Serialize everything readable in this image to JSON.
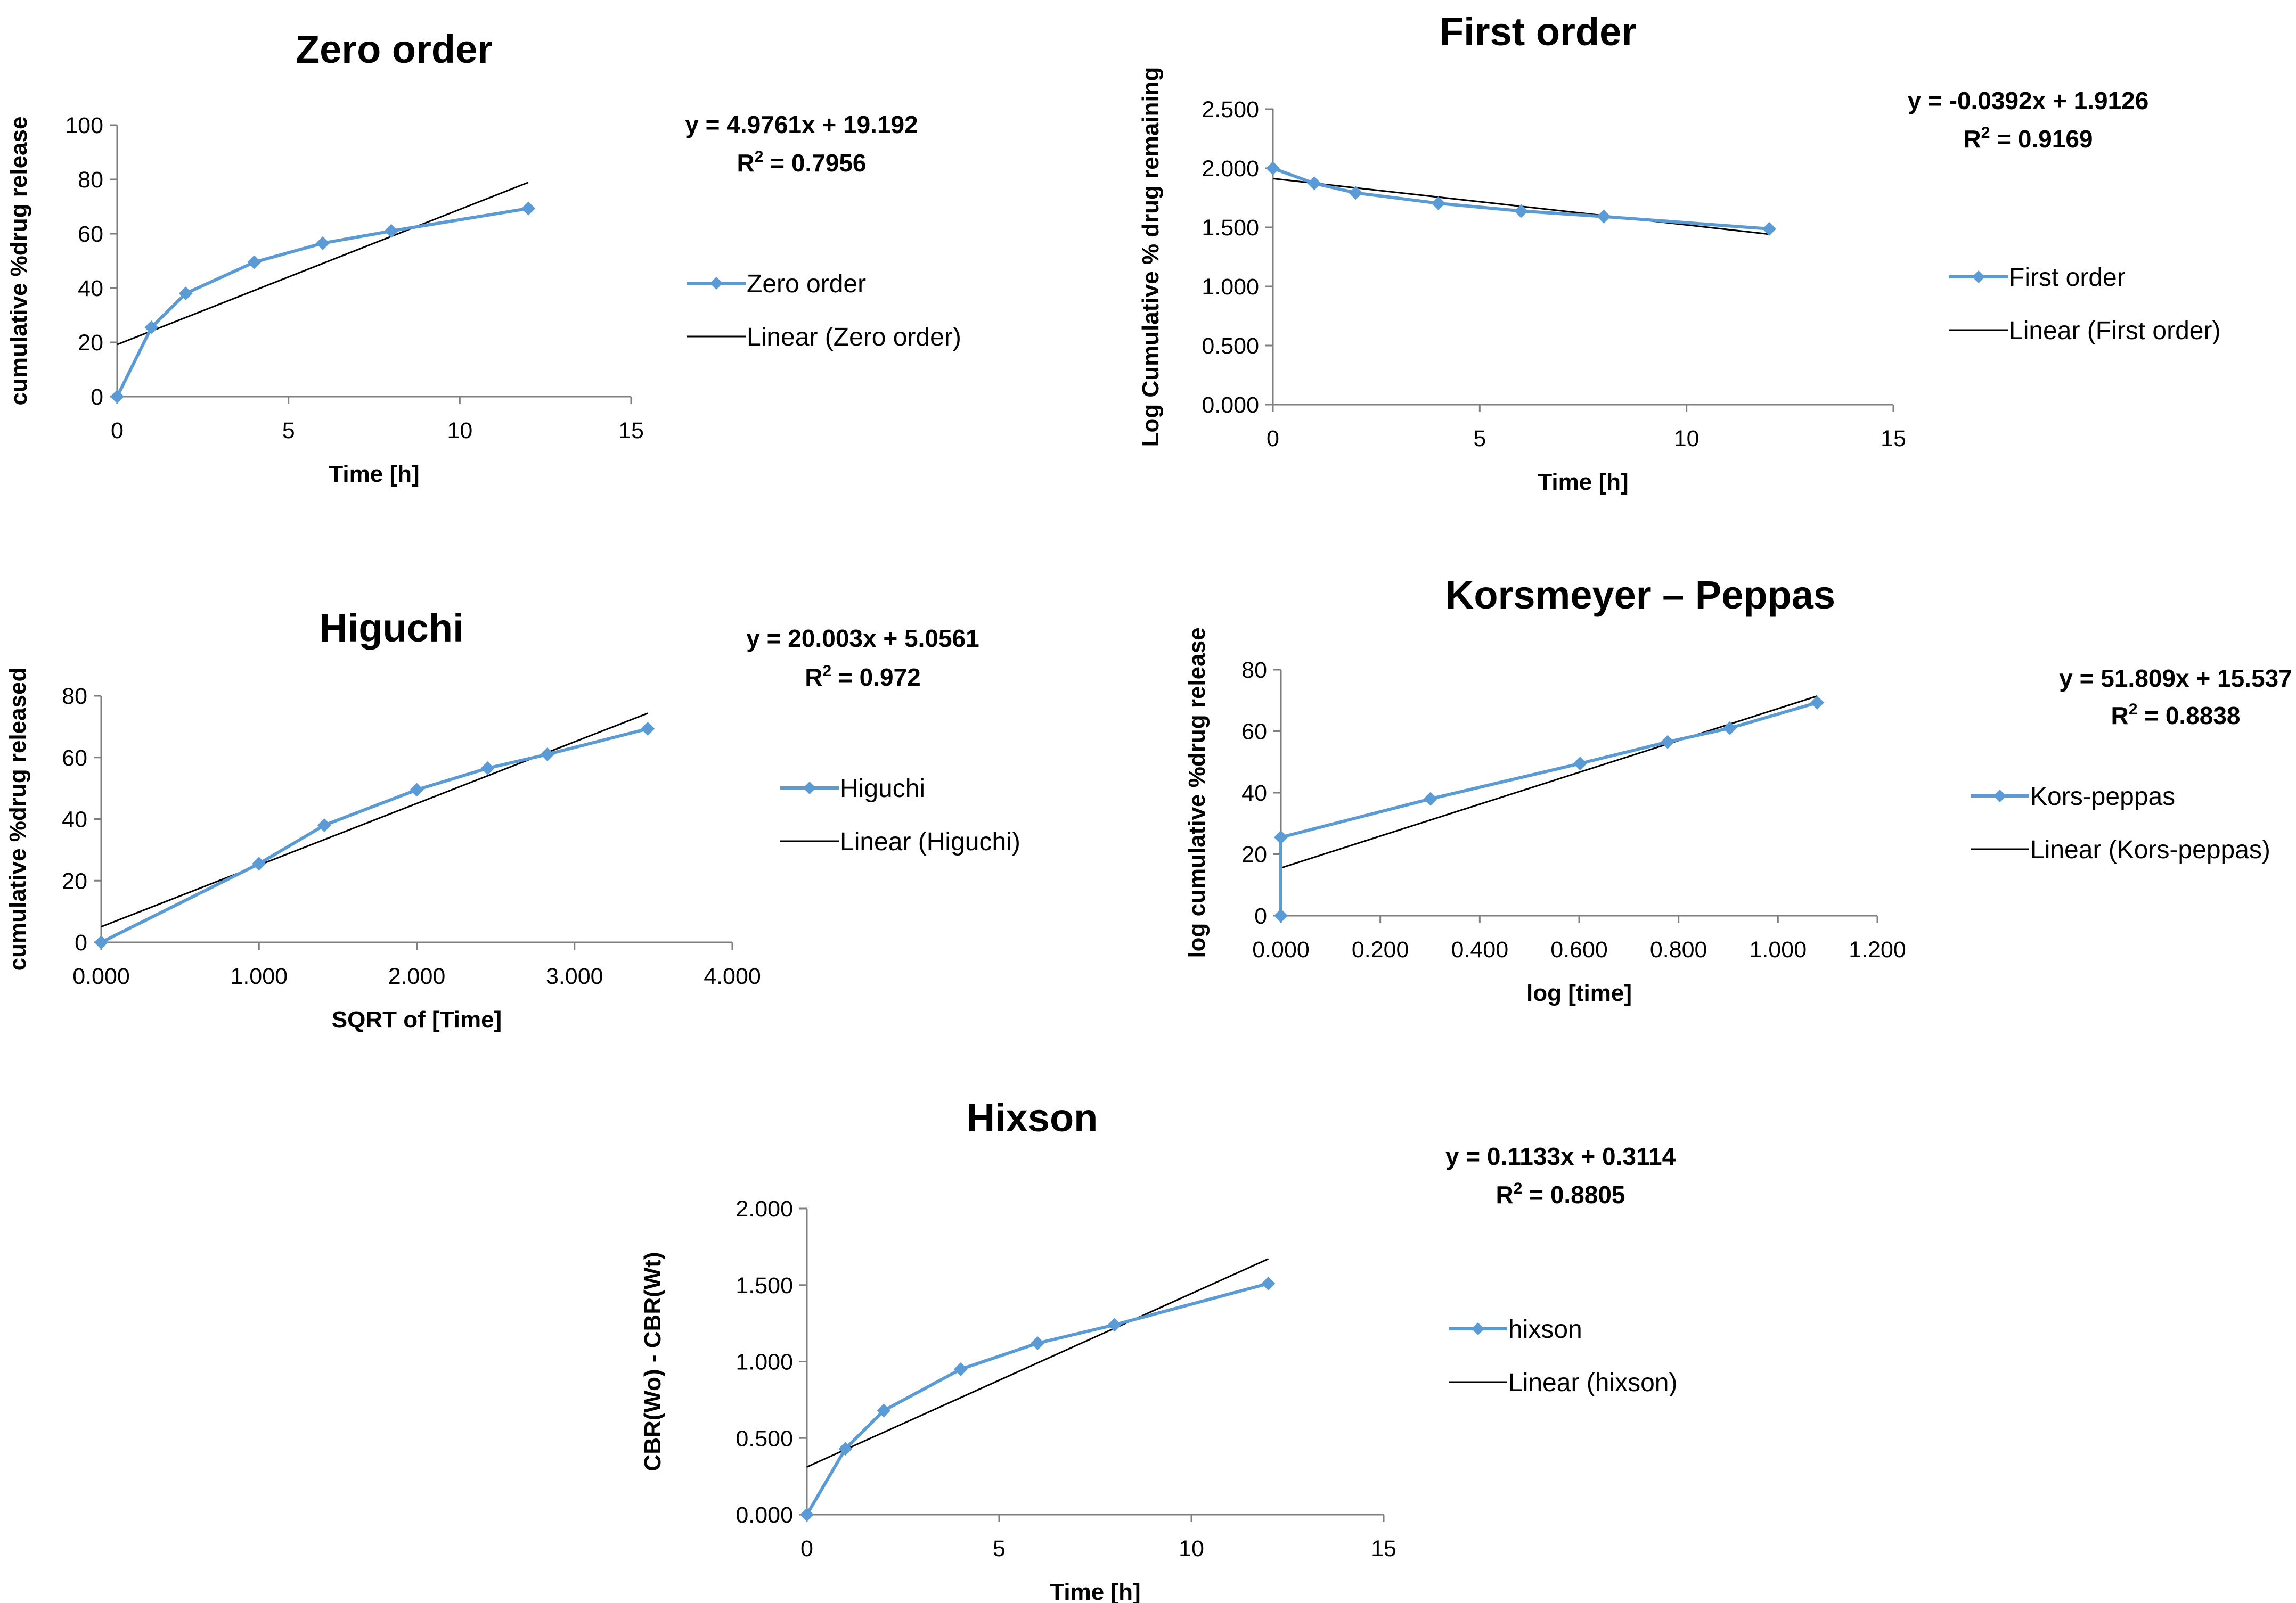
{
  "colors": {
    "series": "#5b9bd5",
    "trend": "#000000",
    "axis": "#7f7f7f"
  },
  "chart_data": [
    {
      "id": "zero",
      "type": "line",
      "title": "Zero order",
      "xlabel": "Time [h]",
      "ylabel": "cumulative %drug release",
      "xlim": [
        0,
        15
      ],
      "ylim": [
        0,
        100
      ],
      "x_ticks": [
        0,
        5,
        10,
        15
      ],
      "x_tick_labels": [
        "0",
        "5",
        "10",
        "15"
      ],
      "y_ticks": [
        0,
        20,
        40,
        60,
        80,
        100
      ],
      "y_tick_labels": [
        "0",
        "20",
        "40",
        "60",
        "80",
        "100"
      ],
      "series": [
        {
          "name": "Zero order",
          "x": [
            0,
            1,
            2,
            4,
            6,
            8,
            12
          ],
          "y": [
            0,
            25.5,
            38,
            49.5,
            56.5,
            61,
            69.3
          ]
        }
      ],
      "trendline": {
        "name": "Linear (Zero order)",
        "slope": 4.9761,
        "intercept": 19.192,
        "x_range": [
          0,
          12
        ]
      },
      "equation": "y = 4.9761x + 19.192",
      "r2_prefix": "R",
      "r2_sup": "2",
      "r2_value": " = 0.7956"
    },
    {
      "id": "first",
      "type": "line",
      "title": "First order",
      "xlabel": "Time [h]",
      "ylabel": "Log Cumulative % drug remaining",
      "xlim": [
        0,
        15
      ],
      "ylim": [
        0,
        2.5
      ],
      "x_ticks": [
        0,
        5,
        10,
        15
      ],
      "x_tick_labels": [
        "0",
        "5",
        "10",
        "15"
      ],
      "y_ticks": [
        0,
        0.5,
        1,
        1.5,
        2,
        2.5
      ],
      "y_tick_labels": [
        "0.000",
        "0.500",
        "1.000",
        "1.500",
        "2.000",
        "2.500"
      ],
      "series": [
        {
          "name": "First order",
          "x": [
            0,
            1,
            2,
            4,
            6,
            8,
            12
          ],
          "y": [
            2.0,
            1.872,
            1.792,
            1.703,
            1.638,
            1.591,
            1.487
          ]
        }
      ],
      "trendline": {
        "name": "Linear (First order)",
        "slope": -0.0392,
        "intercept": 1.9126,
        "x_range": [
          0,
          12
        ]
      },
      "equation": "y = -0.0392x + 1.9126",
      "r2_prefix": "R",
      "r2_sup": "2",
      "r2_value": " = 0.9169"
    },
    {
      "id": "higuchi",
      "type": "line",
      "title": "Higuchi",
      "xlabel": "SQRT of [Time]",
      "ylabel": "cumulative %drug released",
      "xlim": [
        0,
        4
      ],
      "ylim": [
        0,
        80
      ],
      "x_ticks": [
        0,
        1,
        2,
        3,
        4
      ],
      "x_tick_labels": [
        "0.000",
        "1.000",
        "2.000",
        "3.000",
        "4.000"
      ],
      "y_ticks": [
        0,
        20,
        40,
        60,
        80
      ],
      "y_tick_labels": [
        "0",
        "20",
        "40",
        "60",
        "80"
      ],
      "series": [
        {
          "name": "Higuchi",
          "x": [
            0,
            1,
            1.414,
            2,
            2.449,
            2.828,
            3.464
          ],
          "y": [
            0,
            25.5,
            38,
            49.5,
            56.5,
            61,
            69.3
          ]
        }
      ],
      "trendline": {
        "name": "Linear (Higuchi)",
        "slope": 20.003,
        "intercept": 5.0561,
        "x_range": [
          0,
          3.464
        ]
      },
      "equation": "y = 20.003x + 5.0561",
      "r2_prefix": "R",
      "r2_sup": "2",
      "r2_value": " = 0.972"
    },
    {
      "id": "kp",
      "type": "line",
      "title": "Korsmeyer – Peppas",
      "xlabel": "log [time]",
      "ylabel": "log cumulative %drug release",
      "xlim": [
        0,
        1.2
      ],
      "ylim": [
        0,
        80
      ],
      "x_ticks": [
        0,
        0.2,
        0.4,
        0.6,
        0.8,
        1.0,
        1.2
      ],
      "x_tick_labels": [
        "0.000",
        "0.200",
        "0.400",
        "0.600",
        "0.800",
        "1.000",
        "1.200"
      ],
      "y_ticks": [
        0,
        20,
        40,
        60,
        80
      ],
      "y_tick_labels": [
        "0",
        "20",
        "40",
        "60",
        "80"
      ],
      "series": [
        {
          "name": "Kors-peppas",
          "x": [
            0,
            0,
            0.301,
            0.602,
            0.778,
            0.903,
            1.079
          ],
          "y": [
            0,
            25.5,
            38,
            49.5,
            56.5,
            61,
            69.3
          ]
        }
      ],
      "trendline": {
        "name": "Linear (Kors-peppas)",
        "slope": 51.809,
        "intercept": 15.537,
        "x_range": [
          0,
          1.079
        ]
      },
      "equation": "y = 51.809x + 15.537",
      "r2_prefix": "R",
      "r2_sup": "2",
      "r2_value": " = 0.8838"
    },
    {
      "id": "hixson",
      "type": "line",
      "title": "Hixson",
      "xlabel": "Time [h]",
      "ylabel": "CBR(Wo) - CBR(Wt)",
      "xlim": [
        0,
        15
      ],
      "ylim": [
        0,
        2
      ],
      "x_ticks": [
        0,
        5,
        10,
        15
      ],
      "x_tick_labels": [
        "0",
        "5",
        "10",
        "15"
      ],
      "y_ticks": [
        0,
        0.5,
        1,
        1.5,
        2
      ],
      "y_tick_labels": [
        "0.000",
        "0.500",
        "1.000",
        "1.500",
        "2.000"
      ],
      "series": [
        {
          "name": "hixson",
          "x": [
            0,
            1,
            2,
            4,
            6,
            8,
            12
          ],
          "y": [
            0,
            0.43,
            0.68,
            0.95,
            1.12,
            1.24,
            1.51
          ]
        }
      ],
      "trendline": {
        "name": "Linear (hixson)",
        "slope": 0.1133,
        "intercept": 0.3114,
        "x_range": [
          0,
          12
        ]
      },
      "equation": "y = 0.1133x + 0.3114",
      "r2_prefix": "R",
      "r2_sup": "2",
      "r2_value": " = 0.8805"
    }
  ]
}
